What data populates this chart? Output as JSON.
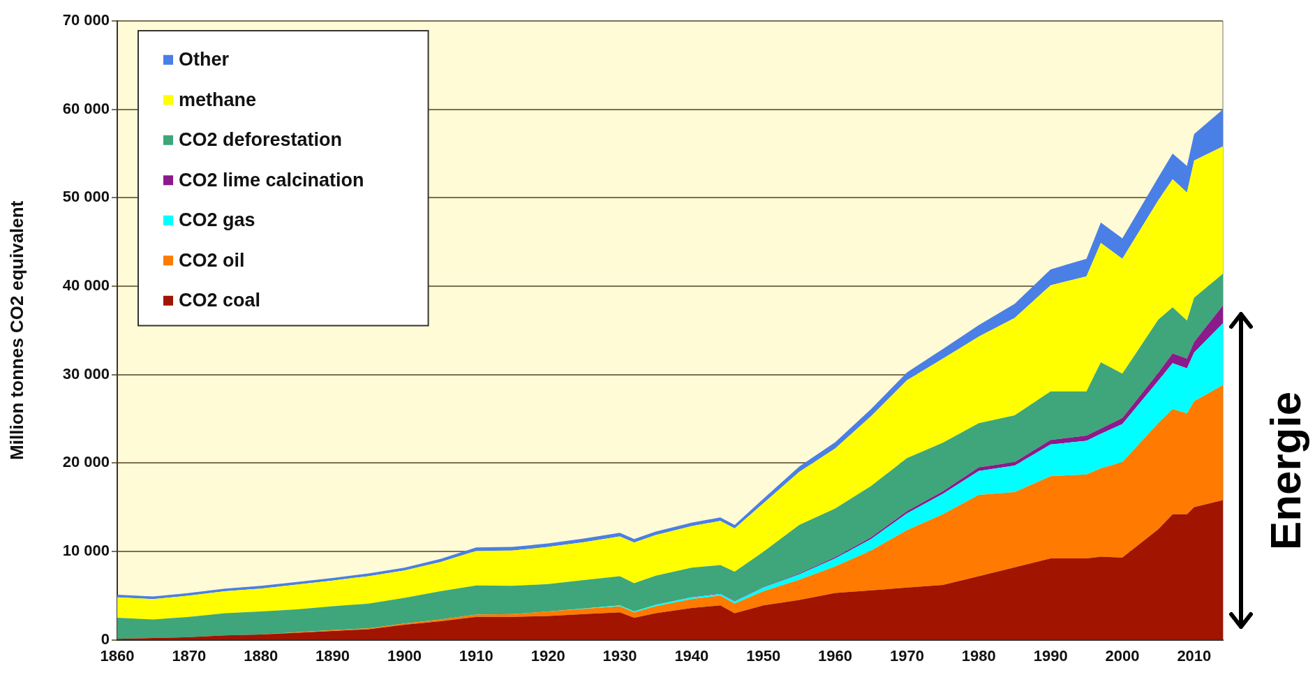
{
  "chart_data": {
    "type": "area",
    "stacked": true,
    "ylabel": "Million tonnes CO2 equivalent",
    "x": [
      1860,
      1865,
      1870,
      1875,
      1880,
      1885,
      1890,
      1895,
      1900,
      1905,
      1910,
      1915,
      1920,
      1925,
      1930,
      1932,
      1935,
      1940,
      1944,
      1946,
      1950,
      1955,
      1960,
      1965,
      1970,
      1975,
      1980,
      1985,
      1990,
      1995,
      1997,
      2000,
      2005,
      2007,
      2009,
      2010,
      2014
    ],
    "xlim": [
      1860,
      2014
    ],
    "xticks": [
      1860,
      1870,
      1880,
      1890,
      1900,
      1910,
      1920,
      1930,
      1940,
      1950,
      1960,
      1970,
      1980,
      1990,
      2000,
      2010
    ],
    "ylim": [
      0,
      70000
    ],
    "yticks": [
      {
        "value": 0,
        "label": "0"
      },
      {
        "value": 10000,
        "label": "10 000"
      },
      {
        "value": 20000,
        "label": "20 000"
      },
      {
        "value": 30000,
        "label": "30 000"
      },
      {
        "value": 40000,
        "label": "40 000"
      },
      {
        "value": 50000,
        "label": "50 000"
      },
      {
        "value": 60000,
        "label": "60 000"
      },
      {
        "value": 70000,
        "label": "70 000"
      }
    ],
    "grid": "y",
    "legend": "top left",
    "series": [
      {
        "name": "CO2 coal",
        "color": "#a01400",
        "values": [
          100,
          200,
          300,
          500,
          600,
          800,
          1000,
          1200,
          1700,
          2100,
          2600,
          2600,
          2700,
          2900,
          3100,
          2500,
          3000,
          3600,
          3900,
          3000,
          3900,
          4500,
          5300,
          5600,
          5900,
          6200,
          7200,
          8200,
          9200,
          9200,
          9400,
          9300,
          12500,
          14200,
          14200,
          15000,
          15800
        ]
      },
      {
        "name": "CO2 oil",
        "color": "#ff7a00",
        "values": [
          0,
          0,
          0,
          0,
          0,
          50,
          100,
          100,
          150,
          200,
          250,
          300,
          500,
          600,
          700,
          600,
          800,
          1000,
          1100,
          1100,
          1600,
          2300,
          3000,
          4500,
          6500,
          8000,
          9200,
          8500,
          9300,
          9500,
          10000,
          10800,
          12000,
          11900,
          11400,
          12000,
          13000
        ]
      },
      {
        "name": "CO2 gas",
        "color": "#00ffff",
        "values": [
          0,
          0,
          0,
          0,
          0,
          0,
          0,
          0,
          0,
          0,
          0,
          0,
          0,
          50,
          100,
          100,
          150,
          200,
          200,
          250,
          400,
          600,
          900,
          1300,
          1900,
          2300,
          2700,
          3000,
          3600,
          3800,
          3900,
          4300,
          4800,
          5200,
          5100,
          5500,
          7000
        ]
      },
      {
        "name": "CO2 lime calcination",
        "color": "#8b1a8b",
        "values": [
          0,
          0,
          0,
          0,
          0,
          0,
          0,
          0,
          0,
          0,
          0,
          0,
          0,
          0,
          0,
          0,
          0,
          50,
          50,
          50,
          50,
          100,
          150,
          200,
          250,
          300,
          400,
          400,
          500,
          600,
          600,
          700,
          900,
          1100,
          1100,
          1200,
          2000
        ]
      },
      {
        "name": "CO2 deforestation",
        "color": "#3ea67a",
        "values": [
          2400,
          2100,
          2300,
          2500,
          2600,
          2600,
          2700,
          2800,
          2900,
          3200,
          3300,
          3200,
          3100,
          3200,
          3300,
          3200,
          3300,
          3300,
          3200,
          3300,
          4000,
          5500,
          5500,
          5800,
          6000,
          5500,
          5000,
          5300,
          5500,
          5000,
          7500,
          5000,
          6000,
          5200,
          4300,
          5000,
          3600
        ]
      },
      {
        "name": "methane",
        "color": "#ffff00",
        "values": [
          2300,
          2300,
          2400,
          2500,
          2600,
          2800,
          2900,
          3100,
          3100,
          3300,
          3900,
          4000,
          4200,
          4300,
          4500,
          4600,
          4600,
          4700,
          5000,
          4900,
          5500,
          6000,
          6800,
          7900,
          8800,
          9500,
          9800,
          11000,
          12000,
          13000,
          13500,
          13000,
          13500,
          14500,
          14500,
          15500,
          14400
        ]
      },
      {
        "name": "Other",
        "color": "#4a7fe6",
        "values": [
          300,
          300,
          300,
          300,
          300,
          300,
          300,
          300,
          300,
          350,
          400,
          400,
          400,
          400,
          400,
          400,
          400,
          400,
          400,
          400,
          500,
          600,
          700,
          800,
          900,
          1100,
          1300,
          1600,
          1800,
          2000,
          2300,
          2300,
          2600,
          2900,
          3000,
          3000,
          4200
        ]
      }
    ],
    "annotations": [
      "Energie"
    ]
  }
}
